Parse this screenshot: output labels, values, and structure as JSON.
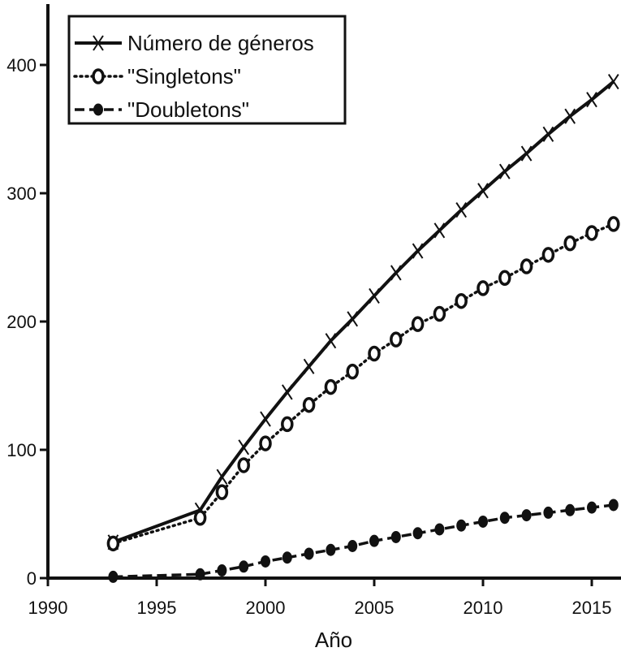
{
  "chart_data": {
    "type": "line",
    "title": "",
    "xlabel": "Año",
    "ylabel": "",
    "xlim": [
      1990,
      2016.3
    ],
    "ylim": [
      0,
      447
    ],
    "xticks": [
      1990,
      1995,
      2000,
      2005,
      2010,
      2015
    ],
    "yticks": [
      0,
      100,
      200,
      300,
      400
    ],
    "grid": false,
    "legend_position": "top-left",
    "x": [
      1993,
      1997,
      1998,
      1999,
      2000,
      2001,
      2002,
      2003,
      2004,
      2005,
      2006,
      2007,
      2008,
      2009,
      2010,
      2011,
      2012,
      2013,
      2014,
      2015,
      2016
    ],
    "series": [
      {
        "name": "Número de géneros",
        "marker": "x",
        "line": "solid",
        "values": [
          28,
          53,
          79,
          102,
          124,
          145,
          165,
          185,
          202,
          220,
          238,
          255,
          271,
          287,
          302,
          317,
          331,
          346,
          360,
          373,
          387
        ]
      },
      {
        "name": "\"Singletons\"",
        "marker": "open-circle",
        "line": "dotted",
        "values": [
          27,
          47,
          67,
          88,
          105,
          120,
          135,
          149,
          161,
          175,
          186,
          198,
          206,
          216,
          226,
          234,
          243,
          252,
          261,
          269,
          276
        ]
      },
      {
        "name": "\"Doubletons\"",
        "marker": "filled-circle",
        "line": "dashed",
        "values": [
          1,
          3,
          6,
          9,
          13,
          16,
          19,
          22,
          25,
          29,
          32,
          35,
          38,
          41,
          44,
          47,
          49,
          51,
          53,
          55,
          57
        ]
      }
    ]
  }
}
